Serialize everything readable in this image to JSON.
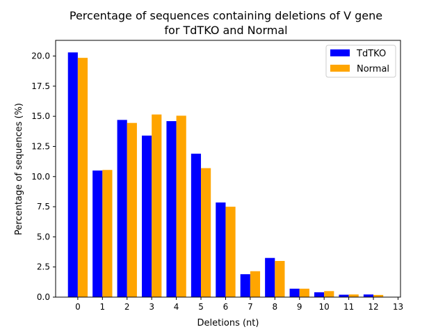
{
  "chart_data": {
    "type": "bar",
    "title_line1": "Percentage of sequences containing deletions of V gene",
    "title_line2": "for TdTKO and Normal",
    "xlabel": "Deletions (nt)",
    "ylabel": "Percentage of sequences (%)",
    "categories": [
      "0",
      "1",
      "2",
      "3",
      "4",
      "5",
      "6",
      "7",
      "8",
      "9",
      "10",
      "11",
      "12",
      "13"
    ],
    "x_ticks": [
      "0",
      "1",
      "2",
      "3",
      "4",
      "5",
      "6",
      "7",
      "8",
      "9",
      "10",
      "11",
      "12",
      "13"
    ],
    "y_ticks": [
      "0.0",
      "2.5",
      "5.0",
      "7.5",
      "10.0",
      "12.5",
      "15.0",
      "17.5",
      "20.0"
    ],
    "ylim": [
      0,
      21.3
    ],
    "xlim": [
      -0.9,
      13.1
    ],
    "series": [
      {
        "name": "TdTKO",
        "color": "#0000ff",
        "values": [
          20.3,
          10.5,
          14.7,
          13.4,
          14.6,
          11.9,
          7.85,
          1.9,
          3.25,
          0.7,
          0.4,
          0.2,
          0.22,
          0
        ]
      },
      {
        "name": "Normal",
        "color": "#ffa500",
        "values": [
          19.85,
          10.55,
          14.45,
          15.15,
          15.05,
          10.7,
          7.5,
          2.15,
          3.0,
          0.7,
          0.5,
          0.22,
          0.18,
          0
        ]
      }
    ],
    "legend_position": "upper right",
    "grid": false
  }
}
